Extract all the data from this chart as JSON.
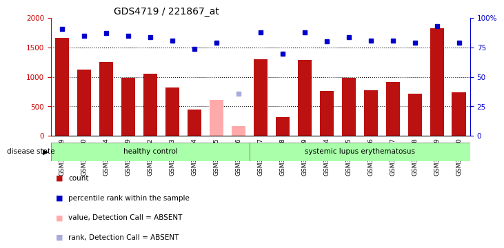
{
  "title": "GDS4719 / 221867_at",
  "samples": [
    "GSM349729",
    "GSM349730",
    "GSM349734",
    "GSM349739",
    "GSM349742",
    "GSM349743",
    "GSM349744",
    "GSM349745",
    "GSM349746",
    "GSM349747",
    "GSM349748",
    "GSM349749",
    "GSM349764",
    "GSM349765",
    "GSM349766",
    "GSM349767",
    "GSM349768",
    "GSM349769",
    "GSM349770"
  ],
  "counts": [
    1660,
    1130,
    1260,
    980,
    1060,
    820,
    450,
    610,
    160,
    1300,
    320,
    1290,
    760,
    980,
    780,
    910,
    710,
    1830,
    740
  ],
  "absent_mask": [
    false,
    false,
    false,
    false,
    false,
    false,
    false,
    true,
    true,
    false,
    false,
    false,
    false,
    false,
    false,
    false,
    false,
    false,
    false
  ],
  "percentile_ranks": [
    91,
    85,
    87,
    85,
    84,
    81,
    74,
    79,
    36,
    88,
    70,
    88,
    80,
    84,
    81,
    81,
    79,
    93,
    79
  ],
  "absent_rank_mask": [
    false,
    false,
    false,
    false,
    false,
    false,
    false,
    false,
    true,
    false,
    false,
    false,
    false,
    false,
    false,
    false,
    false,
    false,
    false
  ],
  "group_labels": [
    "healthy control",
    "systemic lupus erythematosus"
  ],
  "group_split": 9,
  "bar_color_present": "#bb1111",
  "bar_color_absent": "#ffaaaa",
  "dot_color_present": "#0000cc",
  "dot_color_absent": "#aaaadd",
  "ylim_left": [
    0,
    2000
  ],
  "ylim_right": [
    0,
    100
  ],
  "yticks_left": [
    0,
    500,
    1000,
    1500,
    2000
  ],
  "yticks_right": [
    0,
    25,
    50,
    75,
    100
  ],
  "group_color": "#aaffaa",
  "disease_state_label": "disease state",
  "legend_items": [
    {
      "label": "count",
      "color": "#bb1111"
    },
    {
      "label": "percentile rank within the sample",
      "color": "#0000cc"
    },
    {
      "label": "value, Detection Call = ABSENT",
      "color": "#ffaaaa"
    },
    {
      "label": "rank, Detection Call = ABSENT",
      "color": "#aaaadd"
    }
  ]
}
